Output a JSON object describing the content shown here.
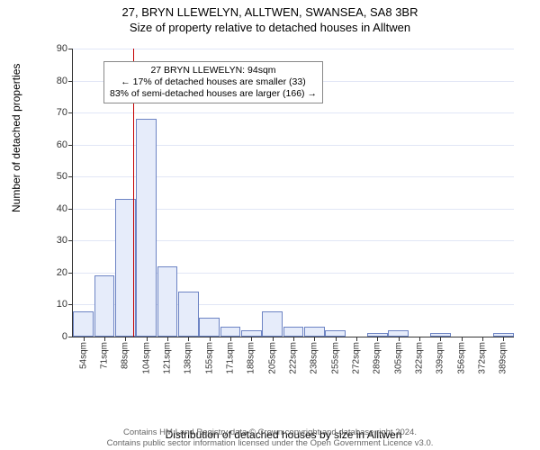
{
  "title_line1": "27, BRYN LLEWELYN, ALLTWEN, SWANSEA, SA8 3BR",
  "title_line2": "Size of property relative to detached houses in Alltwen",
  "chart": {
    "type": "histogram",
    "ylabel": "Number of detached properties",
    "xlabel": "Distribution of detached houses by size in Alltwen",
    "ylim": [
      0,
      90
    ],
    "yticks": [
      0,
      10,
      20,
      30,
      40,
      50,
      60,
      70,
      80,
      90
    ],
    "x_categories": [
      "54sqm",
      "71sqm",
      "88sqm",
      "104sqm",
      "121sqm",
      "138sqm",
      "155sqm",
      "171sqm",
      "188sqm",
      "205sqm",
      "222sqm",
      "238sqm",
      "255sqm",
      "272sqm",
      "289sqm",
      "305sqm",
      "322sqm",
      "339sqm",
      "356sqm",
      "372sqm",
      "389sqm"
    ],
    "values": [
      8,
      19,
      43,
      68,
      22,
      14,
      6,
      3,
      2,
      8,
      3,
      3,
      2,
      0,
      1,
      2,
      0,
      1,
      0,
      0,
      1
    ],
    "bar_fill": "#e6ecfa",
    "bar_border": "#6d84c4",
    "grid_color": "#aab8e6",
    "background": "#ffffff",
    "marker": {
      "position_category_index": 2.35,
      "color": "#c40000"
    },
    "annotation": {
      "line1": "27 BRYN LLEWELYN: 94sqm",
      "line2": "← 17% of detached houses are smaller (33)",
      "line3": "83% of semi-detached houses are larger (166) →"
    }
  },
  "footer": {
    "line1": "Contains HM Land Registry data © Crown copyright and database right 2024.",
    "line2": "Contains public sector information licensed under the Open Government Licence v3.0."
  }
}
